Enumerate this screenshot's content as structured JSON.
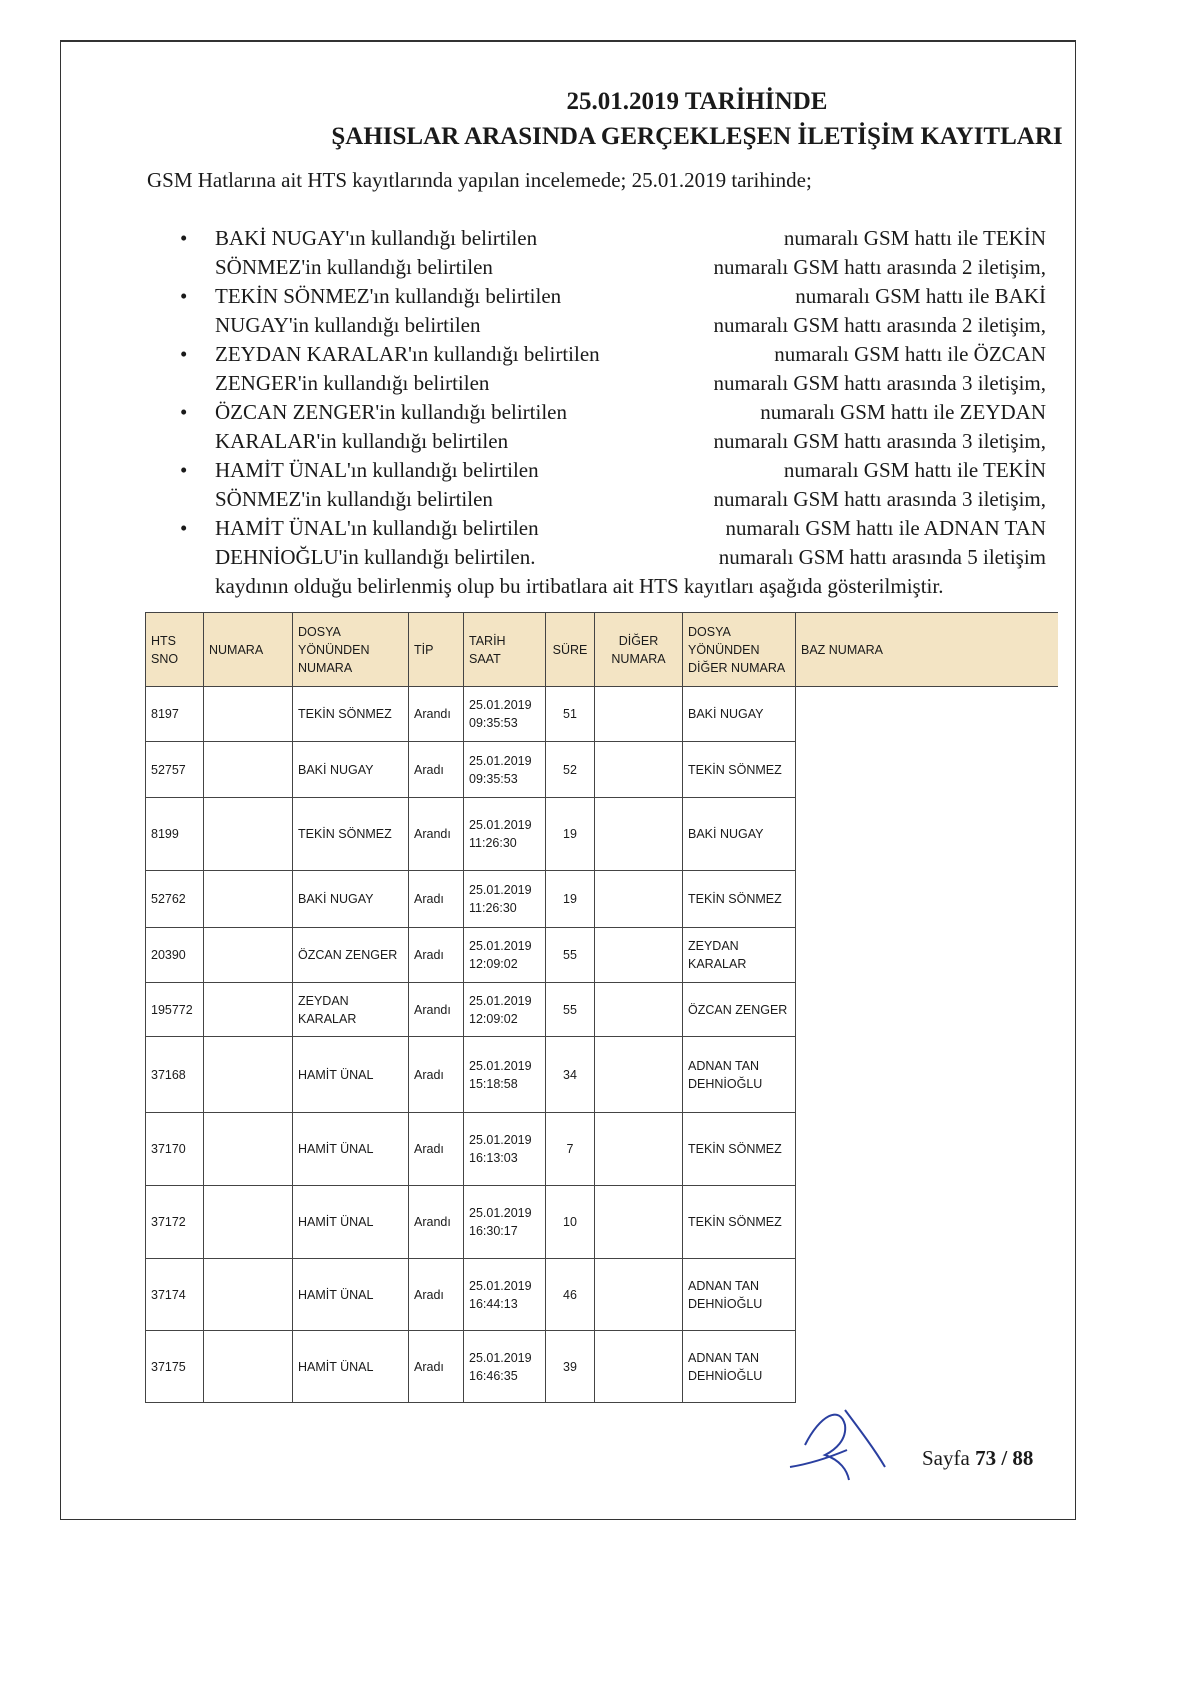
{
  "title": {
    "line1": "25.01.2019 TARİHİNDE",
    "line2": "ŞAHISLAR ARASINDA GERÇEKLEŞEN İLETİŞİM KAYITLARI"
  },
  "intro": "GSM Hatlarına ait HTS kayıtlarında yapılan incelemede; 25.01.2019 tarihinde;",
  "bullets": [
    {
      "l1": "BAKİ  NUGAY'ın  kullandığı  belirtilen",
      "r1": "numaralı  GSM  hattı  ile  TEKİN",
      "l2": "SÖNMEZ'in kullandığı belirtilen",
      "r2": "numaralı GSM hattı arasında 2 iletişim,"
    },
    {
      "l1": "TEKİN  SÖNMEZ'ın  kullandığı  belirtilen",
      "r1": "numaralı  GSM  hattı  ile  BAKİ",
      "l2": "NUGAY'in kullandığı belirtilen",
      "r2": "numaralı GSM hattı arasında 2 iletişim,"
    },
    {
      "l1": "ZEYDAN KARALAR'ın kullandığı belirtilen",
      "r1": "numaralı GSM hattı ile ÖZCAN",
      "l2": "ZENGER'in kullandığı belirtilen",
      "r2": "numaralı GSM hattı arasında 3 iletişim,"
    },
    {
      "l1": "ÖZCAN  ZENGER'in  kullandığı  belirtilen",
      "r1": "numaralı  GSM  hattı  ile  ZEYDAN",
      "l2": "KARALAR'in kullandığı belirtilen",
      "r2": "numaralı GSM hattı arasında 3 iletişim,"
    },
    {
      "l1": "HAMİT  ÜNAL'ın  kullandığı  belirtilen",
      "r1": "numaralı  GSM  hattı  ile  TEKİN",
      "l2": "SÖNMEZ'in kullandığı belirtilen",
      "r2": "numaralı GSM hattı arasında 3 iletişim,"
    },
    {
      "l1": "HAMİT ÜNAL'ın kullandığı belirtilen",
      "r1": "numaralı GSM hattı ile ADNAN TAN",
      "l2": "DEHNİOĞLU'in kullandığı belirtilen.",
      "r2": "numaralı GSM hattı arasında 5 iletişim"
    }
  ],
  "closing": "kaydının olduğu belirlenmiş olup bu irtibatlara ait HTS kayıtları aşağıda gösterilmiştir.",
  "table": {
    "headers": [
      "HTS SNO",
      "NUMARA",
      "DOSYA YÖNÜNDEN NUMARA",
      "TİP",
      "TARİH SAAT",
      "SÜRE",
      "DİĞER NUMARA",
      "DOSYA YÖNÜNDEN DİĞER NUMARA",
      "BAZ NUMARA"
    ],
    "header_color": "#f3e4c4",
    "rows": [
      {
        "sno": "8197",
        "numara": "",
        "dosya": "TEKİN SÖNMEZ",
        "tip": "Arandı",
        "date": "25.01.2019",
        "time": "09:35:53",
        "sure": "51",
        "diger": "",
        "dosya_diger": "BAKİ NUGAY"
      },
      {
        "sno": "52757",
        "numara": "",
        "dosya": "BAKİ NUGAY",
        "tip": "Aradı",
        "date": "25.01.2019",
        "time": "09:35:53",
        "sure": "52",
        "diger": "",
        "dosya_diger": "TEKİN SÖNMEZ"
      },
      {
        "sno": "8199",
        "numara": "",
        "dosya": "TEKİN SÖNMEZ",
        "tip": "Arandı",
        "date": "25.01.2019",
        "time": "11:26:30",
        "sure": "19",
        "diger": "",
        "dosya_diger": "BAKİ NUGAY"
      },
      {
        "sno": "52762",
        "numara": "",
        "dosya": "BAKİ NUGAY",
        "tip": "Aradı",
        "date": "25.01.2019",
        "time": "11:26:30",
        "sure": "19",
        "diger": "",
        "dosya_diger": "TEKİN SÖNMEZ"
      },
      {
        "sno": "20390",
        "numara": "",
        "dosya": "ÖZCAN ZENGER",
        "tip": "Aradı",
        "date": "25.01.2019",
        "time": "12:09:02",
        "sure": "55",
        "diger": "",
        "dosya_diger": "ZEYDAN KARALAR"
      },
      {
        "sno": "195772",
        "numara": "",
        "dosya": "ZEYDAN KARALAR",
        "tip": "Arandı",
        "date": "25.01.2019",
        "time": "12:09:02",
        "sure": "55",
        "diger": "",
        "dosya_diger": "ÖZCAN ZENGER"
      },
      {
        "sno": "37168",
        "numara": "",
        "dosya": "HAMİT ÜNAL",
        "tip": "Aradı",
        "date": "25.01.2019",
        "time": "15:18:58",
        "sure": "34",
        "diger": "",
        "dosya_diger": "ADNAN TAN DEHNİOĞLU"
      },
      {
        "sno": "37170",
        "numara": "",
        "dosya": "HAMİT ÜNAL",
        "tip": "Aradı",
        "date": "25.01.2019",
        "time": "16:13:03",
        "sure": "7",
        "diger": "",
        "dosya_diger": "TEKİN SÖNMEZ"
      },
      {
        "sno": "37172",
        "numara": "",
        "dosya": "HAMİT ÜNAL",
        "tip": "Arandı",
        "date": "25.01.2019",
        "time": "16:30:17",
        "sure": "10",
        "diger": "",
        "dosya_diger": "TEKİN SÖNMEZ"
      },
      {
        "sno": "37174",
        "numara": "",
        "dosya": "HAMİT ÜNAL",
        "tip": "Aradı",
        "date": "25.01.2019",
        "time": "16:44:13",
        "sure": "46",
        "diger": "",
        "dosya_diger": "ADNAN TAN DEHNİOĞLU"
      },
      {
        "sno": "37175",
        "numara": "",
        "dosya": "HAMİT ÜNAL",
        "tip": "Aradı",
        "date": "25.01.2019",
        "time": "16:46:35",
        "sure": "39",
        "diger": "",
        "dosya_diger": "ADNAN TAN DEHNİOĞLU"
      }
    ]
  },
  "footer": {
    "prefix": "Sayfa ",
    "page": "73",
    "sep": " / ",
    "total": "88"
  },
  "signature": {
    "type": "handwritten-signature",
    "ink_color": "#2a3fa0"
  }
}
